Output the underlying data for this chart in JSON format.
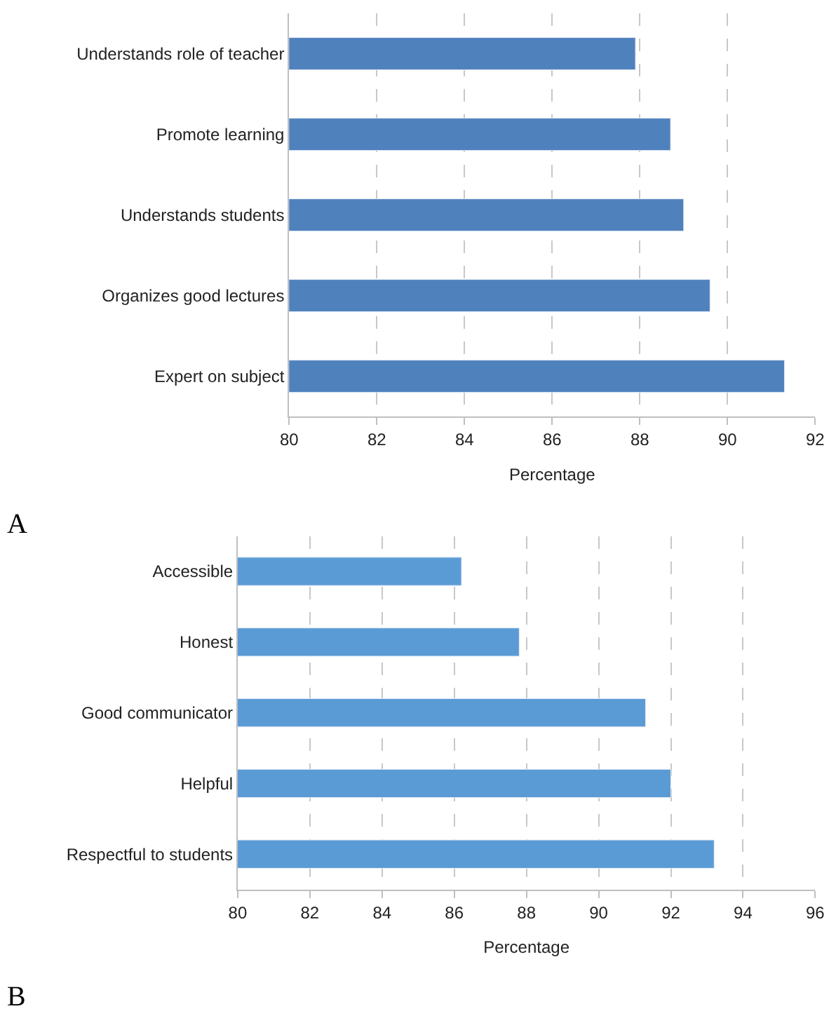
{
  "chart_data": [
    {
      "type": "bar",
      "orientation": "horizontal",
      "xlabel": "Percentage",
      "annotations": [
        "A"
      ],
      "categories": [
        "Understands role of teacher",
        "Promote learning",
        "Understands students",
        "Organizes good lectures",
        "Expert on subject"
      ],
      "values": [
        87.9,
        88.7,
        89.0,
        89.6,
        91.3
      ],
      "color": "#4f81bd",
      "xlim": [
        80,
        92
      ],
      "xticks": [
        80,
        82,
        84,
        86,
        88,
        90,
        92
      ],
      "grid": "x"
    },
    {
      "type": "bar",
      "orientation": "horizontal",
      "xlabel": "Percentage",
      "annotations": [
        "B"
      ],
      "categories": [
        "Accessible",
        "Honest",
        "Good communicator",
        "Helpful",
        "Respectful to students"
      ],
      "values": [
        86.2,
        87.8,
        91.3,
        92.0,
        93.2
      ],
      "color": "#5b9bd5",
      "xlim": [
        80,
        96
      ],
      "xticks": [
        80,
        82,
        84,
        86,
        88,
        90,
        92,
        94,
        96
      ],
      "grid": "x"
    }
  ]
}
